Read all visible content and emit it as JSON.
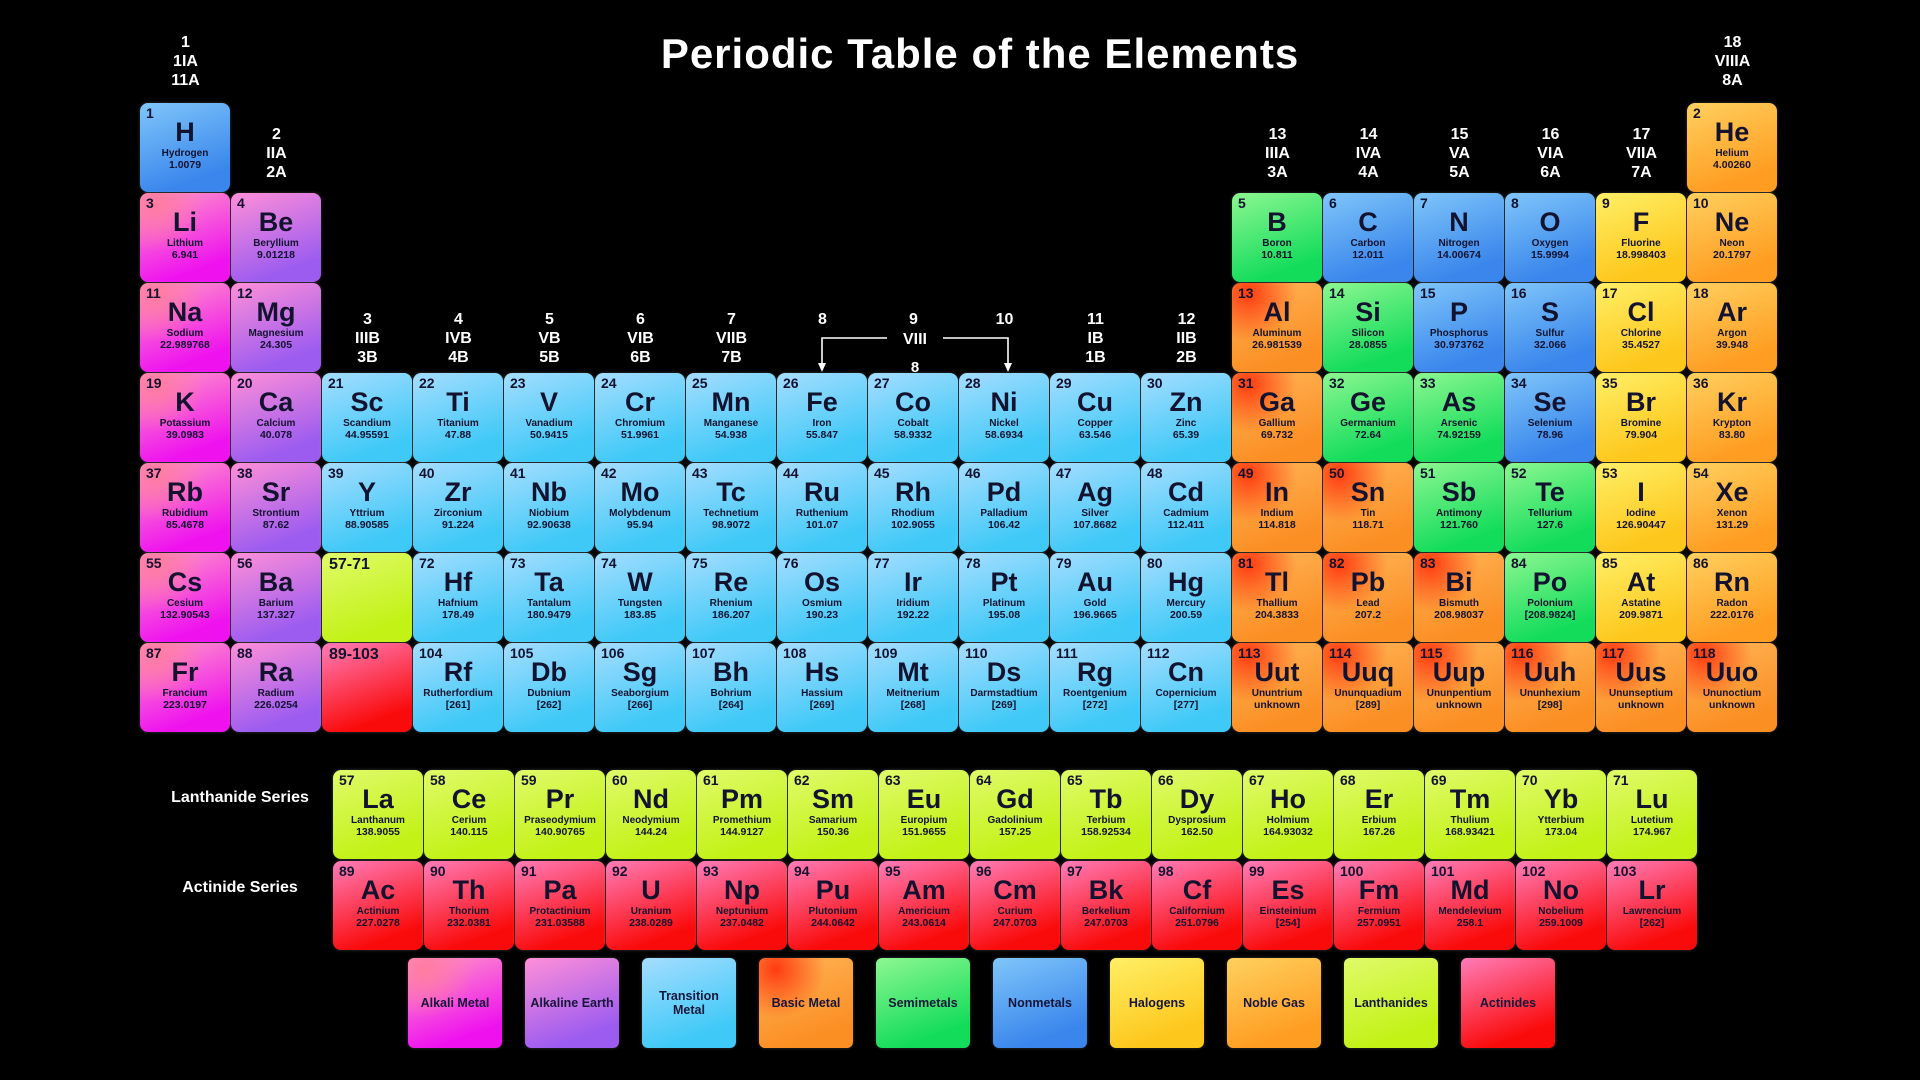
{
  "title": "Periodic Table of the Elements",
  "series": {
    "lanthanide": "Lanthanide Series",
    "actinide": "Actinide Series"
  },
  "viii_bracket": {
    "label": "VIII",
    "sub": "8"
  },
  "categories": {
    "alkali": {
      "label": "Alkali Metal",
      "light": "#ff9dc6",
      "dark": "#ef12ef",
      "spot": "#ff7ba0"
    },
    "alkaline": {
      "label": "Alkaline Earth",
      "light": "#ff8fd8",
      "dark": "#9d5cf0"
    },
    "transition": {
      "label": "Transition Metal",
      "light": "#a5ddff",
      "dark": "#3fc9f7"
    },
    "basic": {
      "label": "Basic Metal",
      "light": "#ffb558",
      "dark": "#fb8f24",
      "spot": "#ff3a10"
    },
    "semimetal": {
      "label": "Semimetals",
      "light": "#8df791",
      "dark": "#13dc5b"
    },
    "nonmetal": {
      "label": "Nonmetals",
      "light": "#7fc6fa",
      "dark": "#3a86ec"
    },
    "halogen": {
      "label": "Halogens",
      "light": "#ffef66",
      "dark": "#fdc71c"
    },
    "noble": {
      "label": "Noble Gas",
      "light": "#ffd05e",
      "dark": "#ff9d22"
    },
    "lanthanide": {
      "label": "Lanthanides",
      "light": "#e0fa6a",
      "dark": "#c2f216"
    },
    "actinide": {
      "label": "Actinides",
      "light": "#ff7cb8",
      "dark": "#fa0b0b"
    }
  },
  "group_headers": [
    {
      "col": 1,
      "lines": [
        "1",
        "1IA",
        "11A"
      ]
    },
    {
      "col": 2,
      "lines": [
        "2",
        "IIA",
        "2A"
      ]
    },
    {
      "col": 3,
      "lines": [
        "3",
        "IIIB",
        "3B"
      ]
    },
    {
      "col": 4,
      "lines": [
        "4",
        "IVB",
        "4B"
      ]
    },
    {
      "col": 5,
      "lines": [
        "5",
        "VB",
        "5B"
      ]
    },
    {
      "col": 6,
      "lines": [
        "6",
        "VIB",
        "6B"
      ]
    },
    {
      "col": 7,
      "lines": [
        "7",
        "VIIB",
        "7B"
      ]
    },
    {
      "col": 8,
      "lines": [
        "8"
      ]
    },
    {
      "col": 9,
      "lines": [
        "9"
      ]
    },
    {
      "col": 10,
      "lines": [
        "10"
      ]
    },
    {
      "col": 11,
      "lines": [
        "11",
        "IB",
        "1B"
      ]
    },
    {
      "col": 12,
      "lines": [
        "12",
        "IIB",
        "2B"
      ]
    },
    {
      "col": 13,
      "lines": [
        "13",
        "IIIA",
        "3A"
      ]
    },
    {
      "col": 14,
      "lines": [
        "14",
        "IVA",
        "4A"
      ]
    },
    {
      "col": 15,
      "lines": [
        "15",
        "VA",
        "5A"
      ]
    },
    {
      "col": 16,
      "lines": [
        "16",
        "VIA",
        "6A"
      ]
    },
    {
      "col": 17,
      "lines": [
        "17",
        "VIIA",
        "7A"
      ]
    },
    {
      "col": 18,
      "lines": [
        "18",
        "VIIIA",
        "8A"
      ]
    }
  ],
  "placeholders": [
    {
      "label": "57-71",
      "c": "lanthanide",
      "r": 6,
      "g": 3
    },
    {
      "label": "89-103",
      "c": "actinide",
      "r": 7,
      "g": 3
    }
  ],
  "elements": [
    {
      "n": 1,
      "s": "H",
      "name": "Hydrogen",
      "m": "1.0079",
      "c": "nonmetal",
      "r": 1,
      "g": 1
    },
    {
      "n": 2,
      "s": "He",
      "name": "Helium",
      "m": "4.00260",
      "c": "noble",
      "r": 1,
      "g": 18
    },
    {
      "n": 3,
      "s": "Li",
      "name": "Lithium",
      "m": "6.941",
      "c": "alkali",
      "r": 2,
      "g": 1
    },
    {
      "n": 4,
      "s": "Be",
      "name": "Beryllium",
      "m": "9.01218",
      "c": "alkaline",
      "r": 2,
      "g": 2
    },
    {
      "n": 5,
      "s": "B",
      "name": "Boron",
      "m": "10.811",
      "c": "semimetal",
      "r": 2,
      "g": 13
    },
    {
      "n": 6,
      "s": "C",
      "name": "Carbon",
      "m": "12.011",
      "c": "nonmetal",
      "r": 2,
      "g": 14
    },
    {
      "n": 7,
      "s": "N",
      "name": "Nitrogen",
      "m": "14.00674",
      "c": "nonmetal",
      "r": 2,
      "g": 15
    },
    {
      "n": 8,
      "s": "O",
      "name": "Oxygen",
      "m": "15.9994",
      "c": "nonmetal",
      "r": 2,
      "g": 16
    },
    {
      "n": 9,
      "s": "F",
      "name": "Fluorine",
      "m": "18.998403",
      "c": "halogen",
      "r": 2,
      "g": 17
    },
    {
      "n": 10,
      "s": "Ne",
      "name": "Neon",
      "m": "20.1797",
      "c": "noble",
      "r": 2,
      "g": 18
    },
    {
      "n": 11,
      "s": "Na",
      "name": "Sodium",
      "m": "22.989768",
      "c": "alkali",
      "r": 3,
      "g": 1
    },
    {
      "n": 12,
      "s": "Mg",
      "name": "Magnesium",
      "m": "24.305",
      "c": "alkaline",
      "r": 3,
      "g": 2
    },
    {
      "n": 13,
      "s": "Al",
      "name": "Aluminum",
      "m": "26.981539",
      "c": "basic",
      "r": 3,
      "g": 13
    },
    {
      "n": 14,
      "s": "Si",
      "name": "Silicon",
      "m": "28.0855",
      "c": "semimetal",
      "r": 3,
      "g": 14
    },
    {
      "n": 15,
      "s": "P",
      "name": "Phosphorus",
      "m": "30.973762",
      "c": "nonmetal",
      "r": 3,
      "g": 15
    },
    {
      "n": 16,
      "s": "S",
      "name": "Sulfur",
      "m": "32.066",
      "c": "nonmetal",
      "r": 3,
      "g": 16
    },
    {
      "n": 17,
      "s": "Cl",
      "name": "Chlorine",
      "m": "35.4527",
      "c": "halogen",
      "r": 3,
      "g": 17
    },
    {
      "n": 18,
      "s": "Ar",
      "name": "Argon",
      "m": "39.948",
      "c": "noble",
      "r": 3,
      "g": 18
    },
    {
      "n": 19,
      "s": "K",
      "name": "Potassium",
      "m": "39.0983",
      "c": "alkali",
      "r": 4,
      "g": 1
    },
    {
      "n": 20,
      "s": "Ca",
      "name": "Calcium",
      "m": "40.078",
      "c": "alkaline",
      "r": 4,
      "g": 2
    },
    {
      "n": 21,
      "s": "Sc",
      "name": "Scandium",
      "m": "44.95591",
      "c": "transition",
      "r": 4,
      "g": 3
    },
    {
      "n": 22,
      "s": "Ti",
      "name": "Titanium",
      "m": "47.88",
      "c": "transition",
      "r": 4,
      "g": 4
    },
    {
      "n": 23,
      "s": "V",
      "name": "Vanadium",
      "m": "50.9415",
      "c": "transition",
      "r": 4,
      "g": 5
    },
    {
      "n": 24,
      "s": "Cr",
      "name": "Chromium",
      "m": "51.9961",
      "c": "transition",
      "r": 4,
      "g": 6
    },
    {
      "n": 25,
      "s": "Mn",
      "name": "Manganese",
      "m": "54.938",
      "c": "transition",
      "r": 4,
      "g": 7
    },
    {
      "n": 26,
      "s": "Fe",
      "name": "Iron",
      "m": "55.847",
      "c": "transition",
      "r": 4,
      "g": 8
    },
    {
      "n": 27,
      "s": "Co",
      "name": "Cobalt",
      "m": "58.9332",
      "c": "transition",
      "r": 4,
      "g": 9
    },
    {
      "n": 28,
      "s": "Ni",
      "name": "Nickel",
      "m": "58.6934",
      "c": "transition",
      "r": 4,
      "g": 10
    },
    {
      "n": 29,
      "s": "Cu",
      "name": "Copper",
      "m": "63.546",
      "c": "transition",
      "r": 4,
      "g": 11
    },
    {
      "n": 30,
      "s": "Zn",
      "name": "Zinc",
      "m": "65.39",
      "c": "transition",
      "r": 4,
      "g": 12
    },
    {
      "n": 31,
      "s": "Ga",
      "name": "Gallium",
      "m": "69.732",
      "c": "basic",
      "r": 4,
      "g": 13
    },
    {
      "n": 32,
      "s": "Ge",
      "name": "Germanium",
      "m": "72.64",
      "c": "semimetal",
      "r": 4,
      "g": 14
    },
    {
      "n": 33,
      "s": "As",
      "name": "Arsenic",
      "m": "74.92159",
      "c": "semimetal",
      "r": 4,
      "g": 15
    },
    {
      "n": 34,
      "s": "Se",
      "name": "Selenium",
      "m": "78.96",
      "c": "nonmetal",
      "r": 4,
      "g": 16
    },
    {
      "n": 35,
      "s": "Br",
      "name": "Bromine",
      "m": "79.904",
      "c": "halogen",
      "r": 4,
      "g": 17
    },
    {
      "n": 36,
      "s": "Kr",
      "name": "Krypton",
      "m": "83.80",
      "c": "noble",
      "r": 4,
      "g": 18
    },
    {
      "n": 37,
      "s": "Rb",
      "name": "Rubidium",
      "m": "85.4678",
      "c": "alkali",
      "r": 5,
      "g": 1
    },
    {
      "n": 38,
      "s": "Sr",
      "name": "Strontium",
      "m": "87.62",
      "c": "alkaline",
      "r": 5,
      "g": 2
    },
    {
      "n": 39,
      "s": "Y",
      "name": "Yttrium",
      "m": "88.90585",
      "c": "transition",
      "r": 5,
      "g": 3
    },
    {
      "n": 40,
      "s": "Zr",
      "name": "Zirconium",
      "m": "91.224",
      "c": "transition",
      "r": 5,
      "g": 4
    },
    {
      "n": 41,
      "s": "Nb",
      "name": "Niobium",
      "m": "92.90638",
      "c": "transition",
      "r": 5,
      "g": 5
    },
    {
      "n": 42,
      "s": "Mo",
      "name": "Molybdenum",
      "m": "95.94",
      "c": "transition",
      "r": 5,
      "g": 6
    },
    {
      "n": 43,
      "s": "Tc",
      "name": "Technetium",
      "m": "98.9072",
      "c": "transition",
      "r": 5,
      "g": 7
    },
    {
      "n": 44,
      "s": "Ru",
      "name": "Ruthenium",
      "m": "101.07",
      "c": "transition",
      "r": 5,
      "g": 8
    },
    {
      "n": 45,
      "s": "Rh",
      "name": "Rhodium",
      "m": "102.9055",
      "c": "transition",
      "r": 5,
      "g": 9
    },
    {
      "n": 46,
      "s": "Pd",
      "name": "Palladium",
      "m": "106.42",
      "c": "transition",
      "r": 5,
      "g": 10
    },
    {
      "n": 47,
      "s": "Ag",
      "name": "Silver",
      "m": "107.8682",
      "c": "transition",
      "r": 5,
      "g": 11
    },
    {
      "n": 48,
      "s": "Cd",
      "name": "Cadmium",
      "m": "112.411",
      "c": "transition",
      "r": 5,
      "g": 12
    },
    {
      "n": 49,
      "s": "In",
      "name": "Indium",
      "m": "114.818",
      "c": "basic",
      "r": 5,
      "g": 13
    },
    {
      "n": 50,
      "s": "Sn",
      "name": "Tin",
      "m": "118.71",
      "c": "basic",
      "r": 5,
      "g": 14
    },
    {
      "n": 51,
      "s": "Sb",
      "name": "Antimony",
      "m": "121.760",
      "c": "semimetal",
      "r": 5,
      "g": 15
    },
    {
      "n": 52,
      "s": "Te",
      "name": "Tellurium",
      "m": "127.6",
      "c": "semimetal",
      "r": 5,
      "g": 16
    },
    {
      "n": 53,
      "s": "I",
      "name": "Iodine",
      "m": "126.90447",
      "c": "halogen",
      "r": 5,
      "g": 17
    },
    {
      "n": 54,
      "s": "Xe",
      "name": "Xenon",
      "m": "131.29",
      "c": "noble",
      "r": 5,
      "g": 18
    },
    {
      "n": 55,
      "s": "Cs",
      "name": "Cesium",
      "m": "132.90543",
      "c": "alkali",
      "r": 6,
      "g": 1
    },
    {
      "n": 56,
      "s": "Ba",
      "name": "Barium",
      "m": "137.327",
      "c": "alkaline",
      "r": 6,
      "g": 2
    },
    {
      "n": 72,
      "s": "Hf",
      "name": "Hafnium",
      "m": "178.49",
      "c": "transition",
      "r": 6,
      "g": 4
    },
    {
      "n": 73,
      "s": "Ta",
      "name": "Tantalum",
      "m": "180.9479",
      "c": "transition",
      "r": 6,
      "g": 5
    },
    {
      "n": 74,
      "s": "W",
      "name": "Tungsten",
      "m": "183.85",
      "c": "transition",
      "r": 6,
      "g": 6
    },
    {
      "n": 75,
      "s": "Re",
      "name": "Rhenium",
      "m": "186.207",
      "c": "transition",
      "r": 6,
      "g": 7
    },
    {
      "n": 76,
      "s": "Os",
      "name": "Osmium",
      "m": "190.23",
      "c": "transition",
      "r": 6,
      "g": 8
    },
    {
      "n": 77,
      "s": "Ir",
      "name": "Iridium",
      "m": "192.22",
      "c": "transition",
      "r": 6,
      "g": 9
    },
    {
      "n": 78,
      "s": "Pt",
      "name": "Platinum",
      "m": "195.08",
      "c": "transition",
      "r": 6,
      "g": 10
    },
    {
      "n": 79,
      "s": "Au",
      "name": "Gold",
      "m": "196.9665",
      "c": "transition",
      "r": 6,
      "g": 11
    },
    {
      "n": 80,
      "s": "Hg",
      "name": "Mercury",
      "m": "200.59",
      "c": "transition",
      "r": 6,
      "g": 12
    },
    {
      "n": 81,
      "s": "Tl",
      "name": "Thallium",
      "m": "204.3833",
      "c": "basic",
      "r": 6,
      "g": 13
    },
    {
      "n": 82,
      "s": "Pb",
      "name": "Lead",
      "m": "207.2",
      "c": "basic",
      "r": 6,
      "g": 14
    },
    {
      "n": 83,
      "s": "Bi",
      "name": "Bismuth",
      "m": "208.98037",
      "c": "basic",
      "r": 6,
      "g": 15
    },
    {
      "n": 84,
      "s": "Po",
      "name": "Polonium",
      "m": "[208.9824]",
      "c": "semimetal",
      "r": 6,
      "g": 16
    },
    {
      "n": 85,
      "s": "At",
      "name": "Astatine",
      "m": "209.9871",
      "c": "halogen",
      "r": 6,
      "g": 17
    },
    {
      "n": 86,
      "s": "Rn",
      "name": "Radon",
      "m": "222.0176",
      "c": "noble",
      "r": 6,
      "g": 18
    },
    {
      "n": 87,
      "s": "Fr",
      "name": "Francium",
      "m": "223.0197",
      "c": "alkali",
      "r": 7,
      "g": 1
    },
    {
      "n": 88,
      "s": "Ra",
      "name": "Radium",
      "m": "226.0254",
      "c": "alkaline",
      "r": 7,
      "g": 2
    },
    {
      "n": 104,
      "s": "Rf",
      "name": "Rutherfordium",
      "m": "[261]",
      "c": "transition",
      "r": 7,
      "g": 4
    },
    {
      "n": 105,
      "s": "Db",
      "name": "Dubnium",
      "m": "[262]",
      "c": "transition",
      "r": 7,
      "g": 5
    },
    {
      "n": 106,
      "s": "Sg",
      "name": "Seaborgium",
      "m": "[266]",
      "c": "transition",
      "r": 7,
      "g": 6
    },
    {
      "n": 107,
      "s": "Bh",
      "name": "Bohrium",
      "m": "[264]",
      "c": "transition",
      "r": 7,
      "g": 7
    },
    {
      "n": 108,
      "s": "Hs",
      "name": "Hassium",
      "m": "[269]",
      "c": "transition",
      "r": 7,
      "g": 8
    },
    {
      "n": 109,
      "s": "Mt",
      "name": "Meitnerium",
      "m": "[268]",
      "c": "transition",
      "r": 7,
      "g": 9
    },
    {
      "n": 110,
      "s": "Ds",
      "name": "Darmstadtium",
      "m": "[269]",
      "c": "transition",
      "r": 7,
      "g": 10
    },
    {
      "n": 111,
      "s": "Rg",
      "name": "Roentgenium",
      "m": "[272]",
      "c": "transition",
      "r": 7,
      "g": 11
    },
    {
      "n": 112,
      "s": "Cn",
      "name": "Copernicium",
      "m": "[277]",
      "c": "transition",
      "r": 7,
      "g": 12
    },
    {
      "n": 113,
      "s": "Uut",
      "name": "Ununtrium",
      "m": "unknown",
      "c": "basic",
      "r": 7,
      "g": 13
    },
    {
      "n": 114,
      "s": "Uuq",
      "name": "Ununquadium",
      "m": "[289]",
      "c": "basic",
      "r": 7,
      "g": 14
    },
    {
      "n": 115,
      "s": "Uup",
      "name": "Ununpentium",
      "m": "unknown",
      "c": "basic",
      "r": 7,
      "g": 15
    },
    {
      "n": 116,
      "s": "Uuh",
      "name": "Ununhexium",
      "m": "[298]",
      "c": "basic",
      "r": 7,
      "g": 16
    },
    {
      "n": 117,
      "s": "Uus",
      "name": "Ununseptium",
      "m": "unknown",
      "c": "basic",
      "r": 7,
      "g": 17
    },
    {
      "n": 118,
      "s": "Uuo",
      "name": "Ununoctium",
      "m": "unknown",
      "c": "basic",
      "r": 7,
      "g": 18
    }
  ],
  "lanthanides": [
    {
      "n": 57,
      "s": "La",
      "name": "Lanthanum",
      "m": "138.9055",
      "c": "lanthanide"
    },
    {
      "n": 58,
      "s": "Ce",
      "name": "Cerium",
      "m": "140.115",
      "c": "lanthanide"
    },
    {
      "n": 59,
      "s": "Pr",
      "name": "Praseodymium",
      "m": "140.90765",
      "c": "lanthanide"
    },
    {
      "n": 60,
      "s": "Nd",
      "name": "Neodymium",
      "m": "144.24",
      "c": "lanthanide"
    },
    {
      "n": 61,
      "s": "Pm",
      "name": "Promethium",
      "m": "144.9127",
      "c": "lanthanide"
    },
    {
      "n": 62,
      "s": "Sm",
      "name": "Samarium",
      "m": "150.36",
      "c": "lanthanide"
    },
    {
      "n": 63,
      "s": "Eu",
      "name": "Europium",
      "m": "151.9655",
      "c": "lanthanide"
    },
    {
      "n": 64,
      "s": "Gd",
      "name": "Gadolinium",
      "m": "157.25",
      "c": "lanthanide"
    },
    {
      "n": 65,
      "s": "Tb",
      "name": "Terbium",
      "m": "158.92534",
      "c": "lanthanide"
    },
    {
      "n": 66,
      "s": "Dy",
      "name": "Dysprosium",
      "m": "162.50",
      "c": "lanthanide"
    },
    {
      "n": 67,
      "s": "Ho",
      "name": "Holmium",
      "m": "164.93032",
      "c": "lanthanide"
    },
    {
      "n": 68,
      "s": "Er",
      "name": "Erbium",
      "m": "167.26",
      "c": "lanthanide"
    },
    {
      "n": 69,
      "s": "Tm",
      "name": "Thulium",
      "m": "168.93421",
      "c": "lanthanide"
    },
    {
      "n": 70,
      "s": "Yb",
      "name": "Ytterbium",
      "m": "173.04",
      "c": "lanthanide"
    },
    {
      "n": 71,
      "s": "Lu",
      "name": "Lutetium",
      "m": "174.967",
      "c": "lanthanide"
    }
  ],
  "actinides": [
    {
      "n": 89,
      "s": "Ac",
      "name": "Actinium",
      "m": "227.0278",
      "c": "actinide"
    },
    {
      "n": 90,
      "s": "Th",
      "name": "Thorium",
      "m": "232.0381",
      "c": "actinide"
    },
    {
      "n": 91,
      "s": "Pa",
      "name": "Protactinium",
      "m": "231.03588",
      "c": "actinide"
    },
    {
      "n": 92,
      "s": "U",
      "name": "Uranium",
      "m": "238.0289",
      "c": "actinide"
    },
    {
      "n": 93,
      "s": "Np",
      "name": "Neptunium",
      "m": "237.0482",
      "c": "actinide"
    },
    {
      "n": 94,
      "s": "Pu",
      "name": "Plutonium",
      "m": "244.0642",
      "c": "actinide"
    },
    {
      "n": 95,
      "s": "Am",
      "name": "Americium",
      "m": "243.0614",
      "c": "actinide"
    },
    {
      "n": 96,
      "s": "Cm",
      "name": "Curium",
      "m": "247.0703",
      "c": "actinide"
    },
    {
      "n": 97,
      "s": "Bk",
      "name": "Berkelium",
      "m": "247.0703",
      "c": "actinide"
    },
    {
      "n": 98,
      "s": "Cf",
      "name": "Californium",
      "m": "251.0796",
      "c": "actinide"
    },
    {
      "n": 99,
      "s": "Es",
      "name": "Einsteinium",
      "m": "[254]",
      "c": "actinide"
    },
    {
      "n": 100,
      "s": "Fm",
      "name": "Fermium",
      "m": "257.0951",
      "c": "actinide"
    },
    {
      "n": 101,
      "s": "Md",
      "name": "Mendelevium",
      "m": "258.1",
      "c": "actinide"
    },
    {
      "n": 102,
      "s": "No",
      "name": "Nobelium",
      "m": "259.1009",
      "c": "actinide"
    },
    {
      "n": 103,
      "s": "Lr",
      "name": "Lawrencium",
      "m": "[262]",
      "c": "actinide"
    }
  ],
  "legend": [
    {
      "cat": "alkali"
    },
    {
      "cat": "alkaline"
    },
    {
      "cat": "transition"
    },
    {
      "cat": "basic"
    },
    {
      "cat": "semimetal"
    },
    {
      "cat": "nonmetal"
    },
    {
      "cat": "halogen"
    },
    {
      "cat": "noble"
    },
    {
      "cat": "lanthanide"
    },
    {
      "cat": "actinide"
    }
  ]
}
